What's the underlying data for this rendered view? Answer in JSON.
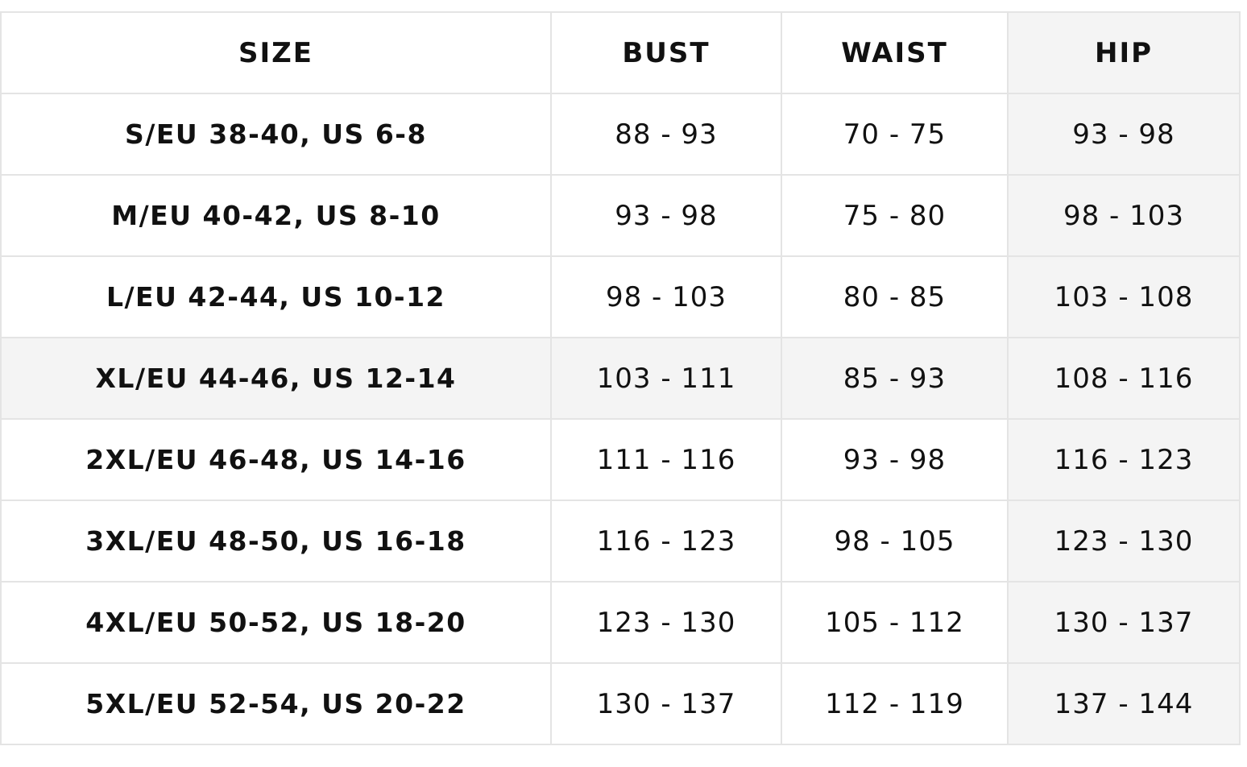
{
  "table": {
    "header": [
      "SIZE",
      "BUST",
      "WAIST",
      "HIP"
    ],
    "rows": [
      [
        "S/EU 38-40, US 6-8",
        "88 - 93",
        "70 - 75",
        "93 - 98"
      ],
      [
        "M/EU 40-42, US 8-10",
        "93 - 98",
        "75 - 80",
        "98 - 103"
      ],
      [
        "L/EU 42-44, US 10-12",
        "98 - 103",
        "80 - 85",
        "103 - 108"
      ],
      [
        "XL/EU 44-46, US 12-14",
        "103 - 111",
        "85 - 93",
        "108 - 116"
      ],
      [
        "2XL/EU 46-48, US 14-16",
        "111 - 116",
        "93 - 98",
        "116 - 123"
      ],
      [
        "3XL/EU 48-50, US 16-18",
        "116 - 123",
        "98 - 105",
        "123 - 130"
      ],
      [
        "4XL/EU 50-52, US 18-20",
        "123 - 130",
        "105 - 112",
        "130 - 137"
      ],
      [
        "5XL/EU 52-54, US 20-22",
        "130 - 137",
        "112 - 119",
        "137 - 144"
      ]
    ]
  }
}
